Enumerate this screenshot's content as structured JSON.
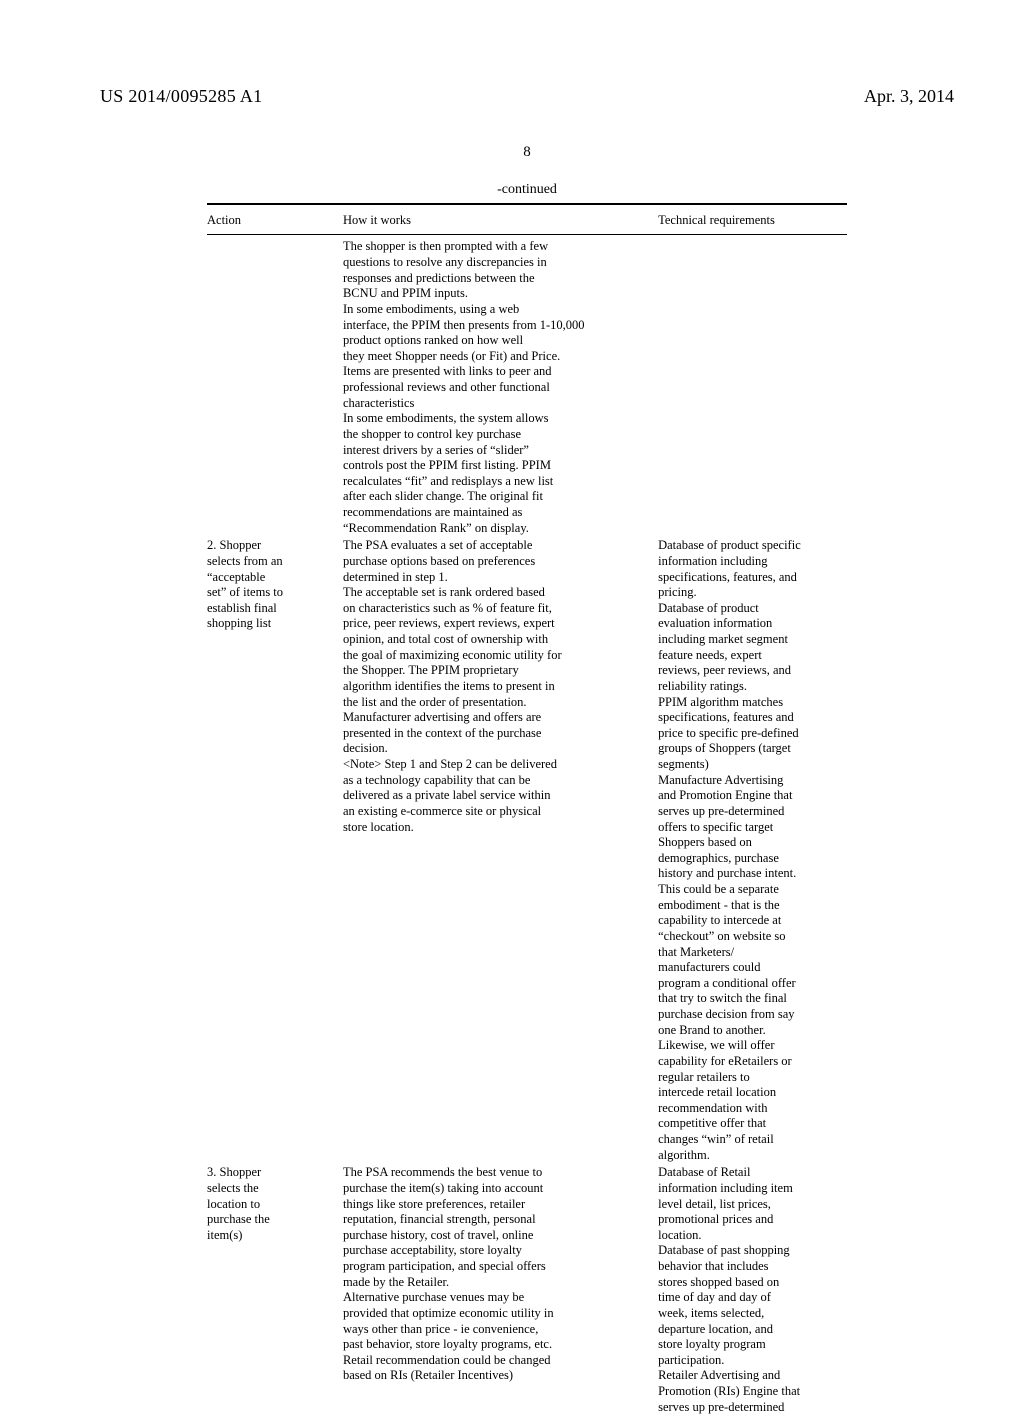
{
  "header": {
    "pub_no": "US 2014/0095285 A1",
    "pub_date": "Apr. 3, 2014"
  },
  "page_num": "8",
  "continued_label": "-continued",
  "columns": {
    "action": "Action",
    "how": "How it works",
    "tech": "Technical requirements"
  },
  "rows": [
    {
      "action": "",
      "how": "The shopper is then prompted with a few\nquestions to resolve any discrepancies in\nresponses and predictions between the\nBCNU and PPIM inputs.\nIn some embodiments, using a web\ninterface, the PPIM then presents from 1-10,000\nproduct options ranked on how well\nthey meet Shopper needs (or Fit) and Price.\nItems are presented with links to peer and\nprofessional reviews and other functional\ncharacteristics\nIn some embodiments, the system allows\nthe shopper to control key purchase\ninterest drivers by a series of “slider”\ncontrols post the PPIM first listing. PPIM\nrecalculates “fit” and redisplays a new list\nafter each slider change. The original fit\nrecommendations are maintained as\n“Recommendation Rank” on display.",
      "tech": ""
    },
    {
      "action": "2. Shopper\nselects from an\n“acceptable\nset” of items to\nestablish final\nshopping list",
      "how": "The PSA evaluates a set of acceptable\npurchase options based on preferences\ndetermined in step 1.\nThe acceptable set is rank ordered based\non characteristics such as % of feature fit,\nprice, peer reviews, expert reviews, expert\nopinion, and total cost of ownership with\nthe goal of maximizing economic utility for\nthe Shopper. The PPIM proprietary\nalgorithm identifies the items to present in\nthe list and the order of presentation.\nManufacturer advertising and offers are\npresented in the context of the purchase\ndecision.\n<Note> Step 1 and Step 2 can be delivered\nas a technology capability that can be\ndelivered as a private label service within\nan existing e-commerce site or physical\nstore location.",
      "tech": "Database of product specific\ninformation including\nspecifications, features, and\npricing.\nDatabase of product\nevaluation information\nincluding market segment\nfeature needs, expert\nreviews, peer reviews, and\nreliability ratings.\nPPIM algorithm matches\nspecifications, features and\nprice to specific pre-defined\ngroups of Shoppers (target\nsegments)\nManufacture Advertising\nand Promotion Engine that\nserves up pre-determined\noffers to specific target\nShoppers based on\ndemographics, purchase\nhistory and purchase intent.\nThis could be a separate\nembodiment - that is the\ncapability to intercede at\n“checkout” on website so\nthat Marketers/\nmanufacturers could\nprogram a conditional offer\nthat try to switch the final\npurchase decision from say\none Brand to another.\nLikewise, we will offer\ncapability for eRetailers or\nregular retailers to\nintercede retail location\nrecommendation with\ncompetitive offer that\nchanges “win” of retail\nalgorithm."
    },
    {
      "action": "3. Shopper\nselects the\nlocation to\npurchase the\nitem(s)",
      "how": "The PSA recommends the best venue to\npurchase the item(s) taking into account\nthings like store preferences, retailer\nreputation, financial strength, personal\npurchase history, cost of travel, online\npurchase acceptability, store loyalty\nprogram participation, and special offers\nmade by the Retailer.\nAlternative purchase venues may be\nprovided that optimize economic utility in\nways other than price - ie convenience,\npast behavior, store loyalty programs, etc.\nRetail recommendation could be changed\nbased on RIs (Retailer Incentives)",
      "tech": "Database of Retail\ninformation including item\nlevel detail, list prices,\npromotional prices and\nlocation.\nDatabase of past shopping\nbehavior that includes\nstores shopped based on\ntime of day and day of\nweek, items selected,\ndeparture location, and\nstore loyalty program\nparticipation.\nRetailer Advertising and\nPromotion (RIs) Engine that\nserves up pre-determined"
    }
  ]
}
